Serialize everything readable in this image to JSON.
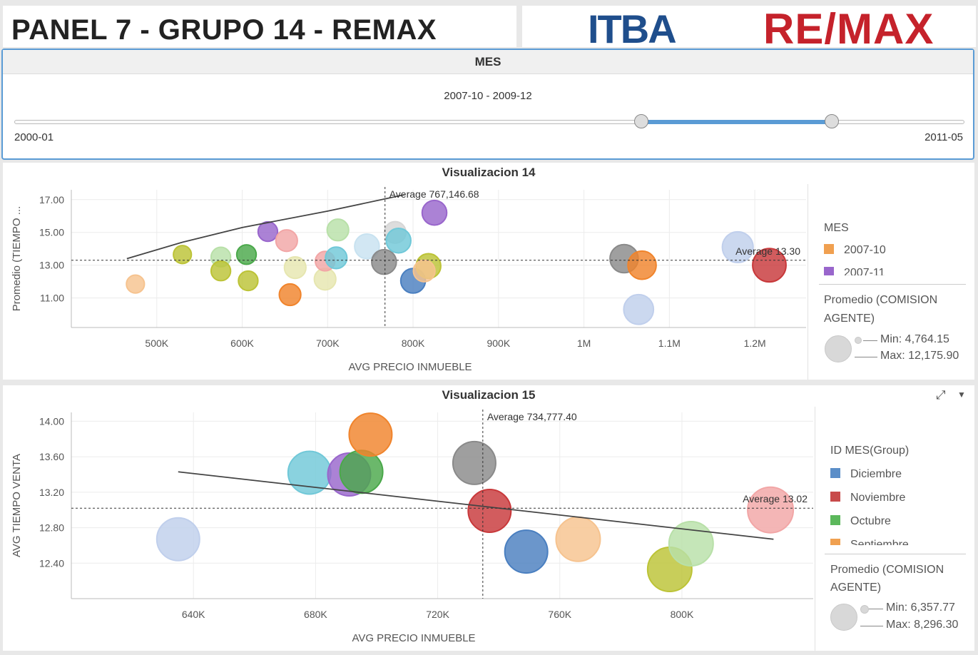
{
  "header": {
    "title": "PANEL 7 - GRUPO 14 - REMAX",
    "logo_itba": "ITBA",
    "logo_remax": "RE/MAX"
  },
  "filter": {
    "title": "MES",
    "range_text": "2007-10 - 2009-12",
    "min_label": "2000-01",
    "max_label": "2011-05",
    "selected_start_fraction": 0.66,
    "selected_end_fraction": 0.86
  },
  "viz14": {
    "title": "Visualizacion 14",
    "legend_title": "MES",
    "legend_items": [
      {
        "label": "2007-10",
        "color": "#f0a050"
      },
      {
        "label": "2007-11",
        "color": "#9966cc"
      }
    ],
    "size_title_line1": "Promedio (COMISION",
    "size_title_line2": "AGENTE)",
    "size_min": "Min: 4,764.15",
    "size_max": "Max: 12,175.90",
    "avg_x_label": "Average 767,146.68",
    "avg_y_label": "Average 13.30"
  },
  "viz15": {
    "title": "Visualizacion 15",
    "legend_title": "ID MES(Group)",
    "legend_items": [
      {
        "label": "Diciembre",
        "color": "#5b8ec8"
      },
      {
        "label": "Noviembre",
        "color": "#c84a4a"
      },
      {
        "label": "Octubre",
        "color": "#5cb85c"
      },
      {
        "label": "Septiembre",
        "color": "#f0a050"
      }
    ],
    "size_title_line1": "Promedio (COMISION",
    "size_title_line2": "AGENTE)",
    "size_min": "Min: 6,357.77",
    "size_max": "Max: 8,296.30",
    "avg_x_label": "Average 734,777.40",
    "avg_y_label": "Average 13.02"
  },
  "chart_data": [
    {
      "type": "scatter",
      "title": "Visualizacion 14",
      "xlabel": "AVG PRECIO INMUEBLE",
      "ylabel": "Promedio (TIEMPO ...",
      "x_ticks": [
        "500K",
        "600K",
        "700K",
        "800K",
        "900K",
        "1M",
        "1.1M",
        "1.2M"
      ],
      "y_ticks": [
        "11.00",
        "13.00",
        "15.00",
        "17.00"
      ],
      "xlim": [
        400000,
        1260000
      ],
      "ylim": [
        9.2,
        17.6
      ],
      "avg_x": 767146.68,
      "avg_y": 13.3,
      "trendline": [
        [
          465000,
          13.4
        ],
        [
          530000,
          14.4
        ],
        [
          600000,
          15.3
        ],
        [
          700000,
          16.3
        ],
        [
          790000,
          17.3
        ]
      ],
      "points": [
        {
          "x": 475000,
          "y": 11.85,
          "s": 0.35,
          "color": "#f6c38f"
        },
        {
          "x": 530000,
          "y": 13.65,
          "s": 0.35,
          "color": "#bcc336"
        },
        {
          "x": 575000,
          "y": 13.5,
          "s": 0.38,
          "color": "#b8e0a8"
        },
        {
          "x": 575000,
          "y": 12.65,
          "s": 0.38,
          "color": "#bcc336"
        },
        {
          "x": 605000,
          "y": 13.65,
          "s": 0.38,
          "color": "#4aa84a"
        },
        {
          "x": 607000,
          "y": 12.05,
          "s": 0.38,
          "color": "#bcc336"
        },
        {
          "x": 630000,
          "y": 15.05,
          "s": 0.38,
          "color": "#9966cc"
        },
        {
          "x": 652000,
          "y": 14.5,
          "s": 0.42,
          "color": "#f2a6a6"
        },
        {
          "x": 656000,
          "y": 11.2,
          "s": 0.42,
          "color": "#f0842c"
        },
        {
          "x": 662000,
          "y": 12.85,
          "s": 0.42,
          "color": "#e6e6b0"
        },
        {
          "x": 697000,
          "y": 12.15,
          "s": 0.42,
          "color": "#e6e6b0"
        },
        {
          "x": 697000,
          "y": 13.25,
          "s": 0.38,
          "color": "#f2a6a6"
        },
        {
          "x": 710000,
          "y": 13.45,
          "s": 0.42,
          "color": "#70c8d8"
        },
        {
          "x": 712000,
          "y": 15.15,
          "s": 0.42,
          "color": "#b8e0a8"
        },
        {
          "x": 746000,
          "y": 14.15,
          "s": 0.48,
          "color": "#c8e2f0"
        },
        {
          "x": 779000,
          "y": 15.0,
          "s": 0.42,
          "color": "#d6d6d6"
        },
        {
          "x": 766000,
          "y": 13.2,
          "s": 0.48,
          "color": "#8a8a8a"
        },
        {
          "x": 783000,
          "y": 14.5,
          "s": 0.48,
          "color": "#70c8d8"
        },
        {
          "x": 800000,
          "y": 12.05,
          "s": 0.48,
          "color": "#4a7fc0"
        },
        {
          "x": 818000,
          "y": 12.95,
          "s": 0.48,
          "color": "#bcc336"
        },
        {
          "x": 813000,
          "y": 12.65,
          "s": 0.42,
          "color": "#f6c38f"
        },
        {
          "x": 825000,
          "y": 16.2,
          "s": 0.48,
          "color": "#9966cc"
        },
        {
          "x": 1047000,
          "y": 13.4,
          "s": 0.55,
          "color": "#8a8a8a"
        },
        {
          "x": 1068000,
          "y": 13.0,
          "s": 0.55,
          "color": "#f0842c"
        },
        {
          "x": 1064000,
          "y": 10.3,
          "s": 0.58,
          "color": "#c0cfec"
        },
        {
          "x": 1180000,
          "y": 14.1,
          "s": 0.6,
          "color": "#c0cfec"
        },
        {
          "x": 1217000,
          "y": 13.0,
          "s": 0.65,
          "color": "#c8383a"
        }
      ]
    },
    {
      "type": "scatter",
      "title": "Visualizacion 15",
      "xlabel": "AVG PRECIO INMUEBLE",
      "ylabel": "AVG TIEMPO VENTA",
      "x_ticks": [
        "640K",
        "680K",
        "720K",
        "760K",
        "800K"
      ],
      "y_ticks": [
        "12.40",
        "12.80",
        "13.20",
        "13.60",
        "14.00"
      ],
      "xlim": [
        600000,
        843000
      ],
      "ylim": [
        12.0,
        14.1
      ],
      "avg_x": 734777.4,
      "avg_y": 13.02,
      "trendline": [
        [
          635000,
          13.43
        ],
        [
          830000,
          12.67
        ]
      ],
      "points": [
        {
          "x": 635000,
          "y": 12.67,
          "s": 0.6,
          "color": "#c0cfec"
        },
        {
          "x": 678000,
          "y": 13.42,
          "s": 0.6,
          "color": "#70c8d8"
        },
        {
          "x": 691000,
          "y": 13.4,
          "s": 0.6,
          "color": "#9966cc"
        },
        {
          "x": 695000,
          "y": 13.43,
          "s": 0.6,
          "color": "#4aa84a"
        },
        {
          "x": 698000,
          "y": 13.85,
          "s": 0.6,
          "color": "#f0842c"
        },
        {
          "x": 732000,
          "y": 13.53,
          "s": 0.6,
          "color": "#8a8a8a"
        },
        {
          "x": 737000,
          "y": 12.99,
          "s": 0.6,
          "color": "#c8383a"
        },
        {
          "x": 749000,
          "y": 12.53,
          "s": 0.6,
          "color": "#4a7fc0"
        },
        {
          "x": 766000,
          "y": 12.67,
          "s": 0.62,
          "color": "#f6c38f"
        },
        {
          "x": 796000,
          "y": 12.33,
          "s": 0.62,
          "color": "#bcc336"
        },
        {
          "x": 803000,
          "y": 12.62,
          "s": 0.62,
          "color": "#b8e0a8"
        },
        {
          "x": 829000,
          "y": 13.0,
          "s": 0.64,
          "color": "#f2a6a6"
        }
      ]
    }
  ]
}
